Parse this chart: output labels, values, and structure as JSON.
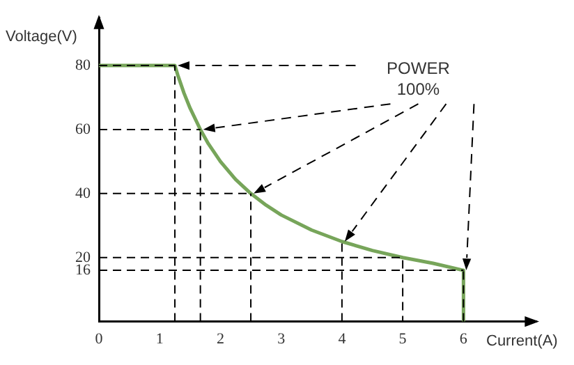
{
  "chart_data": {
    "type": "line",
    "xlabel": "Current(A)",
    "ylabel": "Voltage(V)",
    "annotations": [
      "POWER\n100%"
    ],
    "x": [
      0,
      1.25,
      1.3,
      1.4,
      1.5,
      1.67,
      1.8,
      2,
      2.25,
      2.5,
      2.75,
      3,
      3.5,
      4,
      4.5,
      5,
      5.5,
      6,
      6
    ],
    "series": [
      {
        "color": "#77a55a",
        "values": [
          80,
          80,
          76.9,
          71.4,
          66.7,
          60,
          55.6,
          50,
          44.4,
          40,
          36.4,
          33.3,
          28.6,
          25,
          22.2,
          20,
          18.2,
          16,
          0
        ]
      }
    ],
    "xlim": [
      0,
      7.2
    ],
    "xticks": [
      0,
      1,
      2,
      3,
      4,
      5,
      6
    ],
    "ylim": [
      0,
      95
    ],
    "yticks": [
      16,
      20,
      40,
      60,
      80
    ],
    "ref_lines": [
      {
        "axis": "y",
        "value": 80
      },
      {
        "axis": "y",
        "value": 60
      },
      {
        "axis": "y",
        "value": 40
      },
      {
        "axis": "y",
        "value": 20
      },
      {
        "axis": "y",
        "value": 16
      },
      {
        "axis": "x",
        "value": 1.25
      },
      {
        "axis": "x",
        "value": 1.67
      },
      {
        "axis": "x",
        "value": 2.5
      },
      {
        "axis": "x",
        "value": 4
      },
      {
        "axis": "x",
        "value": 6
      }
    ],
    "grid": false,
    "legend": false,
    "marker": "none",
    "line_style": "solid"
  }
}
